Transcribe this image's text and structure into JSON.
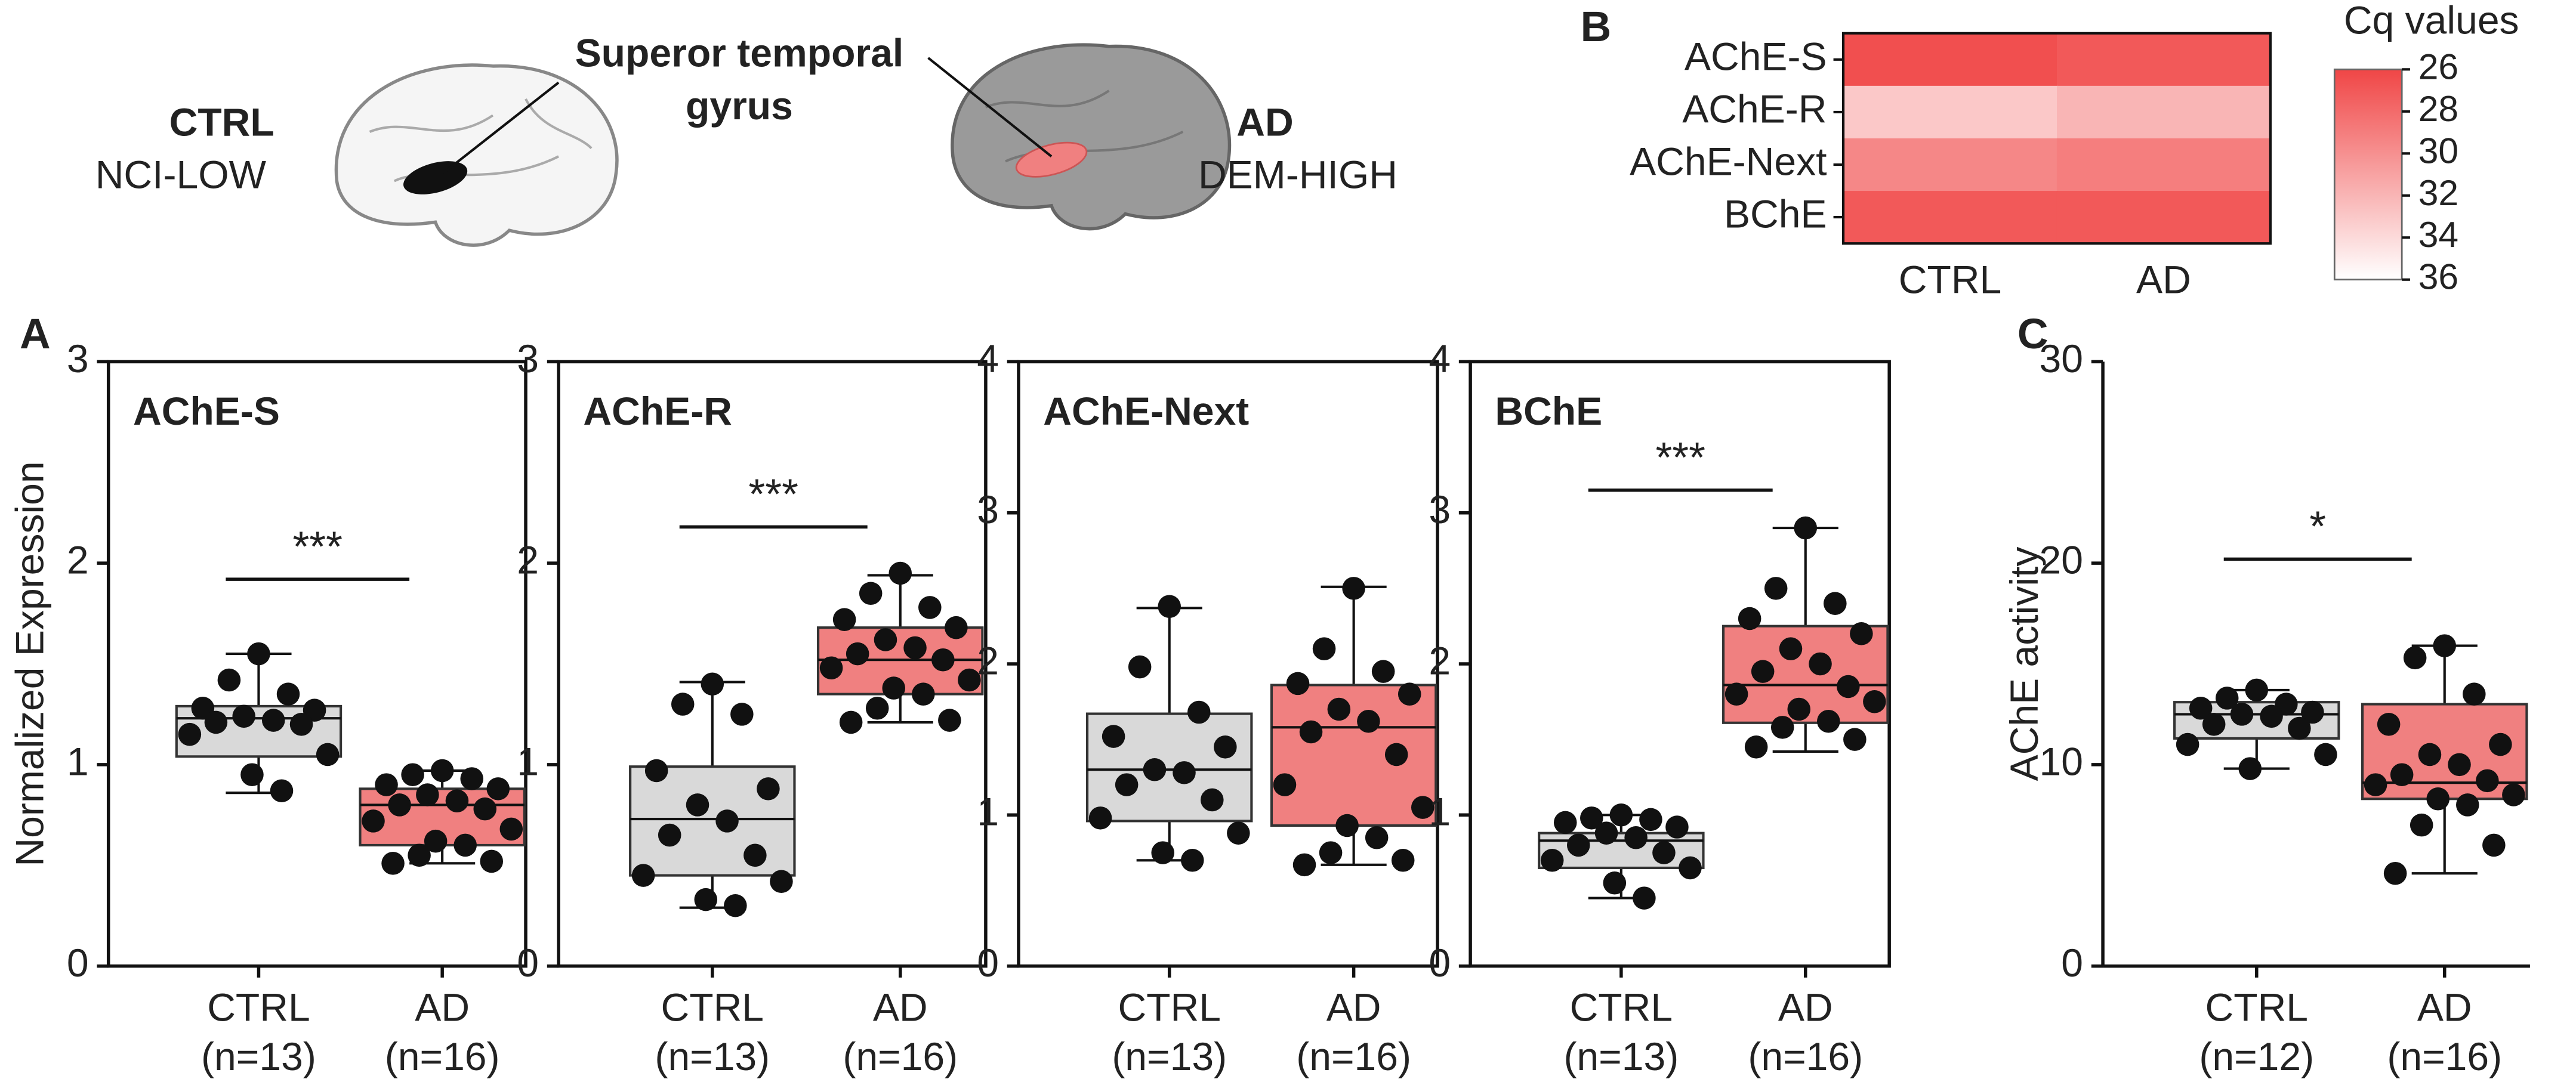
{
  "illustration": {
    "ctrl": "CTRL",
    "ctrl_group": "NCI-LOW",
    "region": [
      "Superor temporal",
      "gyrus"
    ],
    "ad": "AD",
    "ad_group": "DEM-HIGH"
  },
  "chart_data": [
    {
      "type": "box",
      "panel": "A",
      "title": "AChE-S",
      "ylabel": "Normalized Expression",
      "frame": true,
      "categories": [
        "CTRL",
        "AD"
      ],
      "n_labels": [
        "(n=13)",
        "(n=16)"
      ],
      "colors": [
        "#d9d9d9",
        "#f08080"
      ],
      "ylim": [
        0,
        3
      ],
      "yticks": [
        0,
        1,
        2,
        3
      ],
      "boxes": [
        {
          "min": 0.86,
          "q1": 1.04,
          "median": 1.23,
          "q3": 1.29,
          "max": 1.55,
          "points": [
            1.55,
            1.42,
            1.35,
            1.28,
            1.27,
            1.24,
            1.22,
            1.21,
            1.2,
            1.15,
            1.05,
            0.95,
            0.87
          ]
        },
        {
          "min": 0.51,
          "q1": 0.6,
          "median": 0.8,
          "q3": 0.88,
          "max": 0.97,
          "points": [
            0.97,
            0.95,
            0.93,
            0.9,
            0.88,
            0.85,
            0.82,
            0.8,
            0.78,
            0.72,
            0.68,
            0.62,
            0.6,
            0.55,
            0.52,
            0.51
          ]
        }
      ],
      "significance": {
        "label": "***",
        "y": 1.92
      }
    },
    {
      "type": "box",
      "title": "AChE-R",
      "frame": true,
      "categories": [
        "CTRL",
        "AD"
      ],
      "n_labels": [
        "(n=13)",
        "(n=16)"
      ],
      "colors": [
        "#d9d9d9",
        "#f08080"
      ],
      "ylim": [
        0,
        3
      ],
      "yticks": [
        0,
        1,
        2,
        3
      ],
      "boxes": [
        {
          "min": 0.29,
          "q1": 0.45,
          "median": 0.73,
          "q3": 0.99,
          "max": 1.41,
          "points": [
            1.4,
            1.3,
            1.25,
            0.97,
            0.88,
            0.8,
            0.72,
            0.65,
            0.55,
            0.45,
            0.42,
            0.33,
            0.3
          ]
        },
        {
          "min": 1.21,
          "q1": 1.35,
          "median": 1.52,
          "q3": 1.68,
          "max": 1.94,
          "points": [
            1.95,
            1.85,
            1.78,
            1.72,
            1.68,
            1.62,
            1.58,
            1.55,
            1.52,
            1.48,
            1.42,
            1.38,
            1.35,
            1.28,
            1.22,
            1.21
          ]
        }
      ],
      "significance": {
        "label": "***",
        "y": 2.18
      }
    },
    {
      "type": "box",
      "title": "AChE-Next",
      "frame": true,
      "categories": [
        "CTRL",
        "AD"
      ],
      "n_labels": [
        "(n=13)",
        "(n=16)"
      ],
      "colors": [
        "#d9d9d9",
        "#f08080"
      ],
      "ylim": [
        0,
        4
      ],
      "yticks": [
        0,
        1,
        2,
        3,
        4
      ],
      "boxes": [
        {
          "min": 0.7,
          "q1": 0.96,
          "median": 1.3,
          "q3": 1.67,
          "max": 2.37,
          "points": [
            2.38,
            1.98,
            1.68,
            1.52,
            1.45,
            1.3,
            1.28,
            1.2,
            1.1,
            0.98,
            0.88,
            0.75,
            0.7
          ]
        },
        {
          "min": 0.67,
          "q1": 0.93,
          "median": 1.58,
          "q3": 1.86,
          "max": 2.51,
          "points": [
            2.5,
            2.1,
            1.95,
            1.87,
            1.8,
            1.7,
            1.62,
            1.55,
            1.4,
            1.2,
            1.05,
            0.93,
            0.85,
            0.75,
            0.7,
            0.67
          ]
        }
      ]
    },
    {
      "type": "box",
      "title": "BChE",
      "frame": true,
      "categories": [
        "CTRL",
        "AD"
      ],
      "n_labels": [
        "(n=13)",
        "(n=16)"
      ],
      "colors": [
        "#d9d9d9",
        "#f08080"
      ],
      "ylim": [
        0,
        4
      ],
      "yticks": [
        0,
        1,
        2,
        3,
        4
      ],
      "boxes": [
        {
          "min": 0.45,
          "q1": 0.65,
          "median": 0.83,
          "q3": 0.88,
          "max": 1.0,
          "points": [
            1.0,
            0.98,
            0.97,
            0.95,
            0.92,
            0.88,
            0.85,
            0.8,
            0.75,
            0.7,
            0.65,
            0.55,
            0.45
          ]
        },
        {
          "min": 1.42,
          "q1": 1.61,
          "median": 1.86,
          "q3": 2.25,
          "max": 2.9,
          "points": [
            2.9,
            2.5,
            2.4,
            2.3,
            2.2,
            2.1,
            2.0,
            1.95,
            1.85,
            1.8,
            1.75,
            1.7,
            1.62,
            1.58,
            1.5,
            1.45
          ]
        }
      ],
      "significance": {
        "label": "***",
        "y": 3.15
      }
    },
    {
      "type": "box",
      "panel": "C",
      "ylabel": "AChE activity",
      "frame": false,
      "categories": [
        "CTRL",
        "AD"
      ],
      "n_labels": [
        "(n=12)",
        "(n=16)"
      ],
      "colors": [
        "#d9d9d9",
        "#f08080"
      ],
      "ylim": [
        0,
        30
      ],
      "yticks": [
        0,
        10,
        20,
        30
      ],
      "boxes": [
        {
          "min": 9.8,
          "q1": 11.3,
          "median": 12.5,
          "q3": 13.1,
          "max": 13.7,
          "points": [
            13.7,
            13.3,
            13.0,
            12.8,
            12.6,
            12.5,
            12.4,
            12.0,
            11.8,
            11.0,
            10.5,
            9.8
          ]
        },
        {
          "min": 4.6,
          "q1": 8.3,
          "median": 9.1,
          "q3": 13.0,
          "max": 15.9,
          "points": [
            15.9,
            15.3,
            13.5,
            12.0,
            11.0,
            10.5,
            10.0,
            9.5,
            9.2,
            9.0,
            8.5,
            8.3,
            8.0,
            7.0,
            6.0,
            4.6
          ]
        }
      ],
      "significance": {
        "label": "*",
        "y": 20.2
      }
    },
    {
      "type": "heatmap",
      "panel": "B",
      "rows": [
        "AChE-S",
        "AChE-R",
        "AChE-Next",
        "BChE"
      ],
      "columns": [
        "CTRL",
        "AD"
      ],
      "values": [
        [
          26.5,
          27.0
        ],
        [
          33.0,
          32.0
        ],
        [
          29.5,
          29.0
        ],
        [
          27.0,
          27.0
        ]
      ],
      "colorbar": {
        "title": "Cq values",
        "range": [
          26,
          36
        ],
        "ticks": [
          26,
          28,
          30,
          32,
          34,
          36
        ],
        "colors": [
          "#f04646",
          "#ffffff"
        ]
      }
    }
  ]
}
